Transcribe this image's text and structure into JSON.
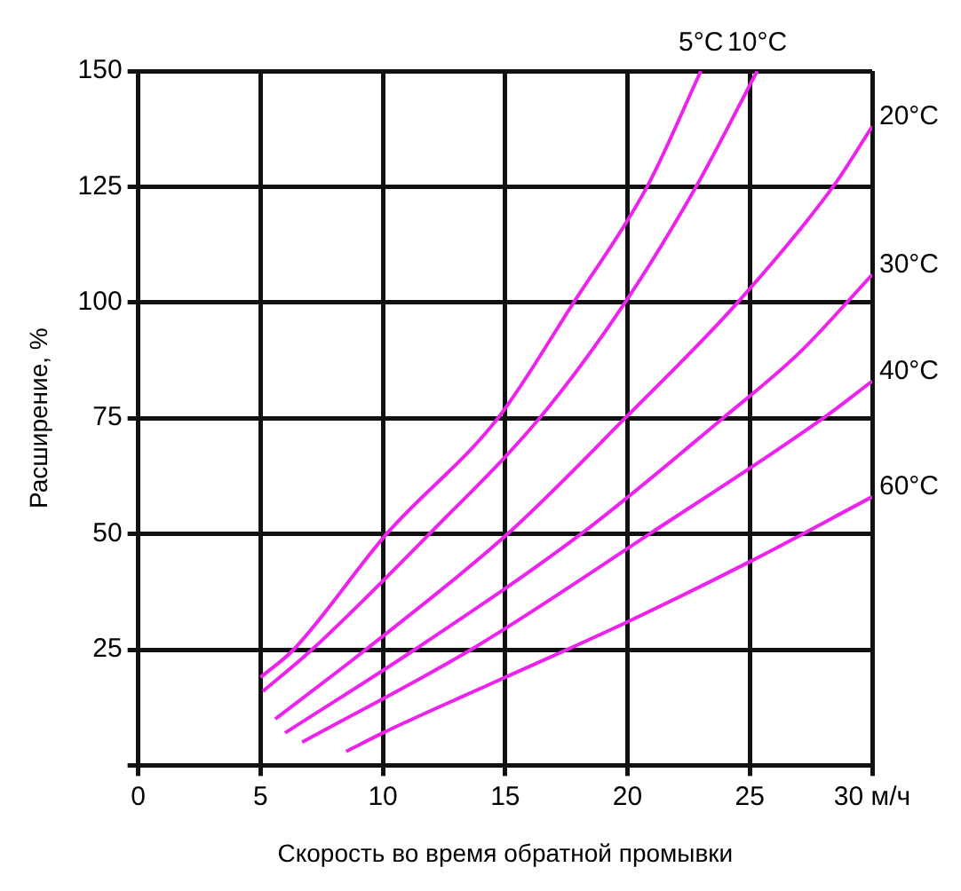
{
  "chart_data": {
    "type": "line",
    "xlabel": "Скорость во время обратной промывки",
    "ylabel": "Расширение, %",
    "xlim": [
      0,
      30
    ],
    "xticks": [
      0,
      5,
      10,
      15,
      20,
      25,
      {
        "value": 30,
        "label": "30 м/ч"
      }
    ],
    "ylim": [
      0,
      150
    ],
    "yticks": [
      {
        "value": 0,
        "label": null
      },
      25,
      50,
      75,
      100,
      125,
      150
    ],
    "grid": true,
    "legend": false,
    "marker": "none",
    "line_style": "solid",
    "series": [
      {
        "name": "5°C",
        "color": "#ee22ee",
        "x": [
          5.0,
          6.35,
          10.15,
          14.7,
          17.8,
          20.8,
          23.0
        ],
        "values": [
          19,
          25,
          50,
          75,
          100,
          125,
          150
        ]
      },
      {
        "name": "10°C",
        "color": "#ee22ee",
        "x": [
          5.1,
          7.1,
          11.9,
          16.4,
          19.9,
          22.8,
          25.3
        ],
        "values": [
          16,
          25,
          50,
          75,
          100,
          125,
          150
        ]
      },
      {
        "name": "20°C",
        "color": "#ee22ee",
        "x": [
          5.6,
          9.3,
          15.1,
          19.9,
          24.5,
          28.4,
          30
        ],
        "values": [
          10,
          25,
          50,
          75,
          100,
          125,
          138
        ]
      },
      {
        "name": "30°C",
        "color": "#ee22ee",
        "x": [
          6.0,
          11.3,
          18.1,
          23.9,
          27,
          30
        ],
        "values": [
          7,
          25,
          50,
          75,
          89,
          106
        ]
      },
      {
        "name": "40°C",
        "color": "#ee22ee",
        "x": [
          6.7,
          13.6,
          20.9,
          28.0,
          30
        ],
        "values": [
          5,
          25,
          50,
          75,
          83
        ]
      },
      {
        "name": "60°C",
        "color": "#ee22ee",
        "x": [
          8.5,
          10,
          15,
          20,
          25,
          30
        ],
        "values": [
          3,
          7,
          19,
          31,
          44,
          58
        ]
      }
    ]
  }
}
